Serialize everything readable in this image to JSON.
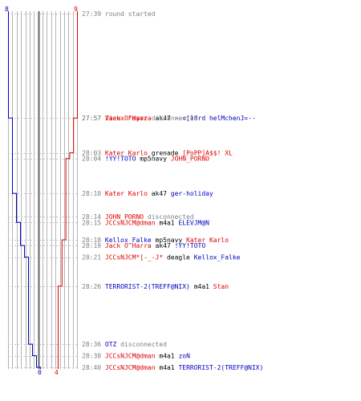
{
  "chart_data": {
    "type": "line",
    "colors": {
      "team_a": "#0000c0",
      "team_b": "#e00000",
      "axis": "#666666",
      "grid": "#b4b4b4",
      "time": "#808080"
    },
    "axis_labels": {
      "left_top": "8",
      "right_top": "9",
      "left_bottom": "0",
      "right_bottom": "4"
    },
    "columns": 17,
    "events": [
      {
        "t": "27:39",
        "kind": "msg",
        "msg": "round started"
      },
      {
        "t": "27:57",
        "kind": "kill",
        "killer": "Jack O'Harra",
        "kc": "team_b",
        "weapon": "ak47",
        "victim": "--=[10rd helMchenJ=--",
        "vc": "team_a"
      },
      {
        "t": "27:57",
        "kind": "disc",
        "player": "Vieux Fayaz",
        "pc": "team_b",
        "msg": "disconnected"
      },
      {
        "t": "28:03",
        "kind": "kill",
        "killer": "Kater Karlo",
        "kc": "team_b",
        "weapon": "grenade",
        "victim": "[PoPP]A$$! XL",
        "vc": "team_b"
      },
      {
        "t": "28:04",
        "kind": "kill",
        "killer": "!YY!TOTO",
        "kc": "team_a",
        "weapon": "mp5navy",
        "victim": "JOHN_PORNO",
        "vc": "team_b"
      },
      {
        "t": "28:10",
        "kind": "kill",
        "killer": "Kater Karlo",
        "kc": "team_b",
        "weapon": "ak47",
        "victim": "ger-holiday",
        "vc": "team_a"
      },
      {
        "t": "28:14",
        "kind": "disc",
        "player": "JOHN_PORNO",
        "pc": "team_b",
        "msg": "disconnected"
      },
      {
        "t": "28:15",
        "kind": "kill",
        "killer": "JCCsNJCM@dman",
        "kc": "team_b",
        "weapon": "m4a1",
        "victim": "ELEVJM@N",
        "vc": "team_a"
      },
      {
        "t": "28:18",
        "kind": "kill",
        "killer": "Kellox_Falke",
        "kc": "team_a",
        "weapon": "mp5navy",
        "victim": "Kater Karlo",
        "vc": "team_b"
      },
      {
        "t": "28:19",
        "kind": "kill",
        "killer": "Jack O'Harra",
        "kc": "team_b",
        "weapon": "ak47",
        "victim": "!YY!TOTO",
        "vc": "team_a"
      },
      {
        "t": "28:21",
        "kind": "kill",
        "killer": "JCCsNJCM*[-_-J*",
        "kc": "team_b",
        "weapon": "deagle",
        "victim": "Kellox_Falke",
        "vc": "team_a"
      },
      {
        "t": "28:26",
        "kind": "kill",
        "killer": "TERRORIST-2(TREFF@NIX)",
        "kc": "team_a",
        "weapon": "m4a1",
        "victim": "Stan",
        "vc": "team_b"
      },
      {
        "t": "28:36",
        "kind": "disc",
        "player": "OTZ",
        "pc": "team_a",
        "msg": "disconnected"
      },
      {
        "t": "28:38",
        "kind": "kill",
        "killer": "JCCsNJCM@dman",
        "kc": "team_b",
        "weapon": "m4a1",
        "victim": "zoN",
        "vc": "team_a"
      },
      {
        "t": "28:40",
        "kind": "kill",
        "killer": "JCCsNJCM@dman",
        "kc": "team_b",
        "weapon": "m4a1",
        "victim": "TERRORIST-2(TREFF@NIX)",
        "vc": "team_a"
      }
    ],
    "team_a_series": [
      {
        "t": "27:39",
        "alive": 8
      },
      {
        "t": "27:57",
        "alive": 7
      },
      {
        "t": "28:10",
        "alive": 6
      },
      {
        "t": "28:15",
        "alive": 5
      },
      {
        "t": "28:19",
        "alive": 4
      },
      {
        "t": "28:21",
        "alive": 3
      },
      {
        "t": "28:36",
        "alive": 2
      },
      {
        "t": "28:38",
        "alive": 1
      },
      {
        "t": "28:40",
        "alive": 0
      }
    ],
    "team_b_series": [
      {
        "t": "27:39",
        "alive": 9
      },
      {
        "t": "27:57",
        "alive": 8
      },
      {
        "t": "28:03",
        "alive": 7
      },
      {
        "t": "28:04",
        "alive": 6
      },
      {
        "t": "28:18",
        "alive": 5
      },
      {
        "t": "28:26",
        "alive": 4
      }
    ]
  }
}
